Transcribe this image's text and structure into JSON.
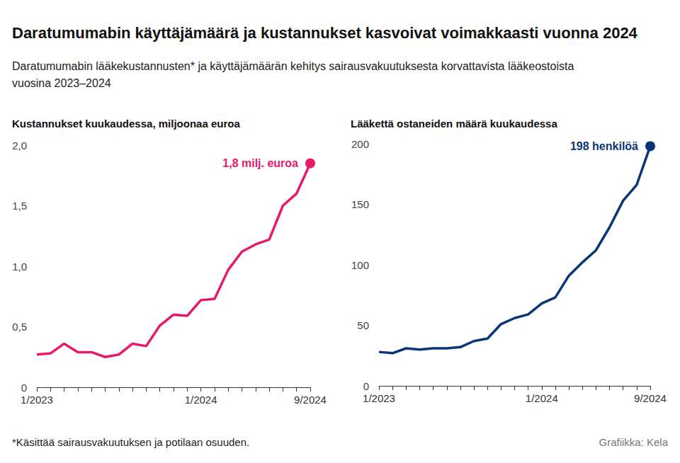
{
  "title": "Daratumumabin käyttäjämäärä ja kustannukset kasvoivat voimakkaasti vuonna 2024",
  "subtitle": "Daratumumabin lääkekustannusten* ja käyttäjämäärän kehitys sairausvakuutuksesta korvattavista lääkeostoista vuosina 2023–2024",
  "note": "*Käsittää sairausvakuutuksen ja potilaan osuuden.",
  "source": "Grafiikka: Kela",
  "chart_data": [
    {
      "type": "line",
      "title": "Kustannukset kuukaudessa, miljoonaa euroa",
      "categories": [
        "1/2023",
        null,
        null,
        null,
        null,
        null,
        null,
        null,
        null,
        null,
        null,
        null,
        "1/2024",
        null,
        null,
        null,
        null,
        null,
        null,
        null,
        "9/2024"
      ],
      "values": [
        0.27,
        0.28,
        0.36,
        0.29,
        0.29,
        0.25,
        0.27,
        0.36,
        0.34,
        0.51,
        0.6,
        0.59,
        0.72,
        0.73,
        0.97,
        1.12,
        1.18,
        1.22,
        1.5,
        1.6,
        1.85
      ],
      "annotation": "1,8 milj. euroa",
      "color": "#e6196b",
      "ylim": [
        0,
        2
      ],
      "yticks": [
        0,
        {
          "value": 0.5,
          "label": "0,5"
        },
        {
          "value": 1,
          "label": "1,0"
        },
        {
          "value": 1.5,
          "label": "1,5"
        },
        {
          "value": 2,
          "label": "2,0"
        }
      ],
      "grid": false
    },
    {
      "type": "line",
      "title": "Lääkettä ostaneiden määrä kuukaudessa",
      "categories": [
        "1/2023",
        null,
        null,
        null,
        null,
        null,
        null,
        null,
        null,
        null,
        null,
        null,
        "1/2024",
        null,
        null,
        null,
        null,
        null,
        null,
        null,
        "9/2024"
      ],
      "values": [
        28,
        27,
        31,
        30,
        31,
        31,
        32,
        37,
        39,
        51,
        56,
        59,
        68,
        73,
        91,
        102,
        112,
        131,
        153,
        166,
        198
      ],
      "annotation": "198 henkilöä",
      "color": "#0a3577",
      "ylim": [
        0,
        200
      ],
      "yticks": [
        0,
        50,
        100,
        150,
        200
      ],
      "grid": false
    }
  ]
}
